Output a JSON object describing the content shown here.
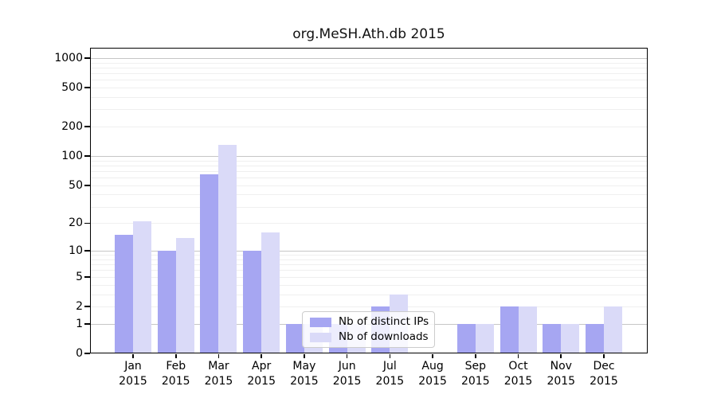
{
  "chart_data": {
    "type": "bar",
    "title": "org.MeSH.Ath.db 2015",
    "categories": [
      "Jan",
      "Feb",
      "Mar",
      "Apr",
      "May",
      "Jun",
      "Jul",
      "Aug",
      "Sep",
      "Oct",
      "Nov",
      "Dec"
    ],
    "x_sub_label": "2015",
    "series": [
      {
        "name": "Nb of distinct IPs",
        "color": "#a6a6f2",
        "values": [
          15,
          10,
          65,
          10,
          1,
          1,
          2,
          0,
          1,
          2,
          1,
          1
        ]
      },
      {
        "name": "Nb of downloads",
        "color": "#dadaf8",
        "values": [
          21,
          14,
          130,
          16,
          1,
          1,
          3,
          0,
          1,
          2,
          1,
          2
        ]
      }
    ],
    "yscale": "log1p",
    "yticks": [
      1000,
      500,
      200,
      100,
      50,
      20,
      10,
      5,
      2,
      1,
      0
    ],
    "ylim": [
      0,
      1400
    ],
    "xlabel": "",
    "ylabel": "",
    "grid": "horizontal",
    "legend_position": "lower-center"
  },
  "style": {
    "major_grid_color": "#c6c6c6",
    "minor_grid_color": "#efefef",
    "axis_color": "#000000",
    "background": "#ffffff"
  }
}
